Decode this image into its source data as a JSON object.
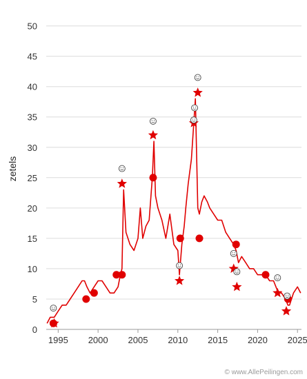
{
  "chart_data": {
    "type": "line",
    "ylabel": "zetels",
    "ylim": [
      0,
      52
    ],
    "xlim": [
      1993.5,
      2025.5
    ],
    "y_ticks": [
      0,
      5,
      10,
      15,
      20,
      25,
      30,
      35,
      40,
      45,
      50
    ],
    "x_ticks": [
      1995,
      2000,
      2005,
      2010,
      2015,
      2020,
      2025
    ],
    "grid": true,
    "series": [
      {
        "color": "#e00000",
        "x": [
          1993.6,
          1994.0,
          1994.5,
          1995.0,
          1995.5,
          1996.0,
          1996.5,
          1997.0,
          1997.5,
          1998.0,
          1998.3,
          1998.6,
          1999.0,
          1999.5,
          2000.0,
          2000.5,
          2001.0,
          2001.5,
          2002.0,
          2002.5,
          2002.8,
          2003.0,
          2003.2,
          2003.5,
          2004.0,
          2004.5,
          2005.0,
          2005.3,
          2005.6,
          2006.0,
          2006.4,
          2006.8,
          2007.0,
          2007.2,
          2007.5,
          2008.0,
          2008.5,
          2009.0,
          2009.5,
          2010.0,
          2010.2,
          2010.5,
          2010.8,
          2011.0,
          2011.3,
          2011.7,
          2012.0,
          2012.2,
          2012.5,
          2012.7,
          2013.0,
          2013.3,
          2013.7,
          2014.0,
          2014.5,
          2015.0,
          2015.5,
          2016.0,
          2016.5,
          2017.0,
          2017.3,
          2017.6,
          2018.0,
          2018.5,
          2019.0,
          2019.5,
          2020.0,
          2020.5,
          2021.0,
          2021.5,
          2022.0,
          2022.3,
          2022.6,
          2023.0,
          2023.5,
          2023.8,
          2024.0,
          2024.5,
          2025.0,
          2025.4
        ],
        "y": [
          1,
          2,
          2,
          3,
          4,
          4,
          5,
          6,
          7,
          8,
          8,
          7,
          6,
          7,
          8,
          8,
          7,
          6,
          6,
          7,
          9,
          10,
          23,
          16,
          14,
          13,
          15,
          20,
          15,
          17,
          18,
          25,
          31,
          22,
          20,
          18,
          15,
          19,
          14,
          13,
          9,
          14,
          17,
          20,
          24,
          28,
          34,
          38,
          20,
          19,
          21,
          22,
          21,
          20,
          19,
          18,
          18,
          16,
          15,
          14,
          13,
          11,
          12,
          11,
          10,
          10,
          9,
          9,
          9,
          8,
          8,
          7,
          6,
          6,
          5,
          4,
          4,
          6,
          7,
          6
        ]
      }
    ],
    "markers_circle": [
      [
        1994.4,
        1
      ],
      [
        1998.5,
        5
      ],
      [
        1999.5,
        6
      ],
      [
        2002.3,
        9
      ],
      [
        2003.0,
        9
      ],
      [
        2006.9,
        25
      ],
      [
        2010.3,
        15
      ],
      [
        2012.7,
        15
      ],
      [
        2017.3,
        14
      ],
      [
        2021.0,
        9
      ],
      [
        2023.8,
        5
      ]
    ],
    "markers_star": [
      [
        1994.5,
        1
      ],
      [
        2003.0,
        24
      ],
      [
        2006.9,
        32
      ],
      [
        2010.2,
        8
      ],
      [
        2012.0,
        34
      ],
      [
        2012.5,
        39
      ],
      [
        2017.0,
        10
      ],
      [
        2017.4,
        7
      ],
      [
        2022.5,
        6
      ],
      [
        2023.6,
        3
      ]
    ],
    "markers_smiley": [
      [
        1994.4,
        3.5
      ],
      [
        2003.0,
        26.5
      ],
      [
        2006.9,
        34.3
      ],
      [
        2010.2,
        10.5
      ],
      [
        2012.0,
        34.5
      ],
      [
        2012.1,
        36.5
      ],
      [
        2012.5,
        41.5
      ],
      [
        2017.0,
        12.5
      ],
      [
        2017.4,
        9.5
      ],
      [
        2022.5,
        8.5
      ],
      [
        2023.7,
        5.5
      ]
    ]
  },
  "credit": "© www.AllePeilingen.com"
}
